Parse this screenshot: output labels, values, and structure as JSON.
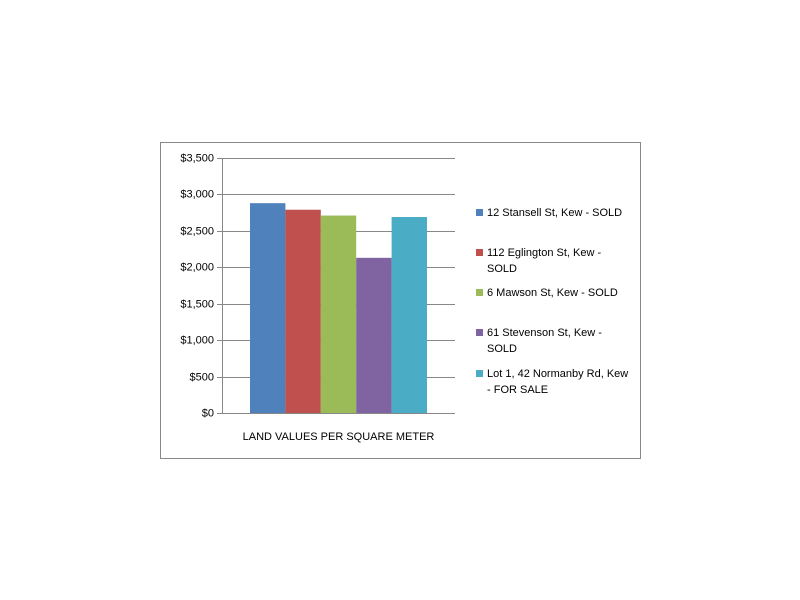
{
  "chart_data": {
    "type": "bar",
    "categories": [
      "LAND VALUES PER SQUARE METER"
    ],
    "series": [
      {
        "name": "12 Stansell St, Kew - SOLD",
        "color": "#4f81bd",
        "values": [
          2880
        ]
      },
      {
        "name": "112 Eglington St, Kew - SOLD",
        "color": "#c0504d",
        "values": [
          2790
        ]
      },
      {
        "name": "6 Mawson St, Kew - SOLD",
        "color": "#9bbb59",
        "values": [
          2710
        ]
      },
      {
        "name": "61 Stevenson St, Kew - SOLD",
        "color": "#8064a2",
        "values": [
          2130
        ]
      },
      {
        "name": "Lot 1, 42 Normanby Rd, Kew -  FOR SALE",
        "color": "#4bacc6",
        "values": [
          2690
        ]
      }
    ],
    "ylim": [
      0,
      3500
    ],
    "yticks": [
      {
        "value": 0,
        "label": "$0"
      },
      {
        "value": 500,
        "label": "$500"
      },
      {
        "value": 1000,
        "label": "$1,000"
      },
      {
        "value": 1500,
        "label": "$1,500"
      },
      {
        "value": 2000,
        "label": "$2,000"
      },
      {
        "value": 2500,
        "label": "$2,500"
      },
      {
        "value": 3000,
        "label": "$3,000"
      },
      {
        "value": 3500,
        "label": "$3,500"
      }
    ],
    "grid": true,
    "legend": "right"
  }
}
